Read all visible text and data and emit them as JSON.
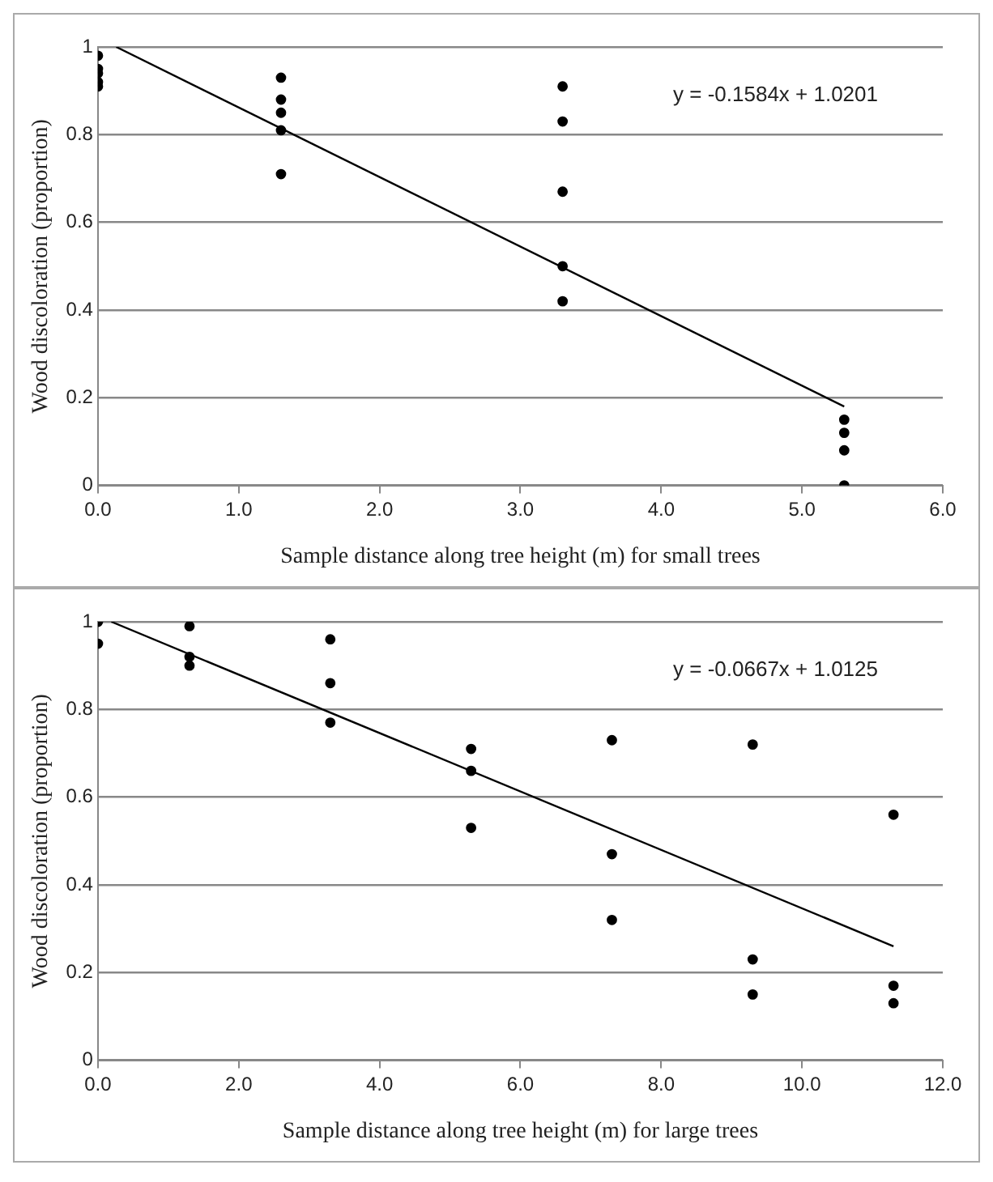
{
  "chart_data": [
    {
      "type": "scatter",
      "xlabel": "Sample distance along tree height (m) for small trees",
      "ylabel": "Wood discoloration (proportion)",
      "marker": "circle",
      "grid": "y",
      "legend": false,
      "xlim": [
        0,
        6
      ],
      "xticks": [
        {
          "value": 0,
          "label": "0.0"
        },
        {
          "value": 1,
          "label": "1.0"
        },
        {
          "value": 2,
          "label": "2.0"
        },
        {
          "value": 3,
          "label": "3.0"
        },
        {
          "value": 4,
          "label": "4.0"
        },
        {
          "value": 5,
          "label": "5.0"
        },
        {
          "value": 6,
          "label": "6.0"
        }
      ],
      "ylim": [
        0,
        1
      ],
      "yticks": [
        0,
        0.2,
        0.4,
        0.6,
        0.8,
        1
      ],
      "annotations": [
        "y = -0.1584x + 1.0201"
      ],
      "series": [
        {
          "type": "scatter",
          "color": "#000000",
          "x": [
            0,
            0,
            0,
            0,
            0,
            1.3,
            1.3,
            1.3,
            1.3,
            1.3,
            3.3,
            3.3,
            3.3,
            3.3,
            3.3,
            5.3,
            5.3,
            5.3,
            5.3
          ],
          "values": [
            0.98,
            0.95,
            0.94,
            0.92,
            0.91,
            0.93,
            0.88,
            0.85,
            0.81,
            0.71,
            0.91,
            0.83,
            0.67,
            0.5,
            0.42,
            0.15,
            0.12,
            0.08,
            0.0
          ]
        },
        {
          "type": "line",
          "color": "#000000",
          "marker": "none",
          "x": [
            0.13,
            5.3
          ],
          "values": [
            1.0,
            0.18
          ]
        }
      ]
    },
    {
      "type": "scatter",
      "xlabel": "Sample distance along tree height (m) for large trees",
      "ylabel": "Wood discoloration (proportion)",
      "marker": "circle",
      "grid": "y",
      "legend": false,
      "xlim": [
        0,
        12
      ],
      "xticks": [
        {
          "value": 0,
          "label": "0.0"
        },
        {
          "value": 2,
          "label": "2.0"
        },
        {
          "value": 4,
          "label": "4.0"
        },
        {
          "value": 6,
          "label": "6.0"
        },
        {
          "value": 8,
          "label": "8.0"
        },
        {
          "value": 10,
          "label": "10.0"
        },
        {
          "value": 12,
          "label": "12.0"
        }
      ],
      "ylim": [
        0,
        1
      ],
      "yticks": [
        0,
        0.2,
        0.4,
        0.6,
        0.8,
        1
      ],
      "annotations": [
        "y = -0.0667x + 1.0125"
      ],
      "series": [
        {
          "type": "scatter",
          "color": "#000000",
          "x": [
            0,
            0,
            1.3,
            1.3,
            1.3,
            3.3,
            3.3,
            3.3,
            5.3,
            5.3,
            5.3,
            7.3,
            7.3,
            7.3,
            9.3,
            9.3,
            9.3,
            11.3,
            11.3,
            11.3
          ],
          "values": [
            1.0,
            0.95,
            0.99,
            0.92,
            0.9,
            0.96,
            0.86,
            0.77,
            0.71,
            0.66,
            0.53,
            0.73,
            0.47,
            0.32,
            0.72,
            0.23,
            0.15,
            0.56,
            0.17,
            0.13
          ]
        },
        {
          "type": "line",
          "color": "#000000",
          "marker": "none",
          "x": [
            0.19,
            11.3
          ],
          "values": [
            1.0,
            0.26
          ]
        }
      ]
    }
  ]
}
